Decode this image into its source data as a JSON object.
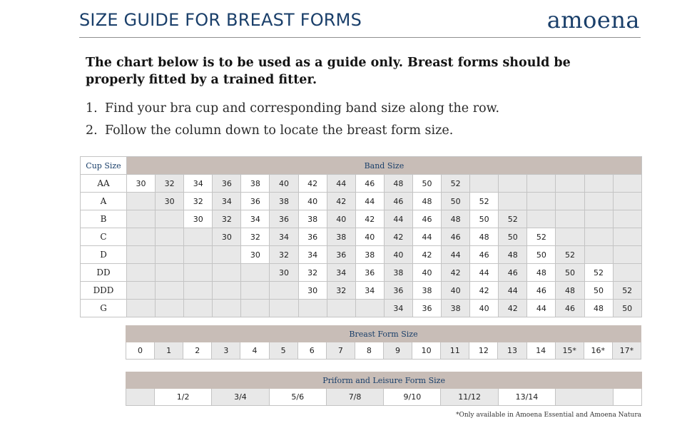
{
  "header": {
    "title": "SIZE GUIDE FOR BREAST FORMS",
    "logo_text": "amoena",
    "brand_color": "#1a3f6a"
  },
  "intro": "The chart below is to be used as a guide only. Breast forms should be properly fitted by a trained fitter.",
  "steps": [
    {
      "num": "1.",
      "text": "Find your bra cup and corresponding band size along the row."
    },
    {
      "num": "2.",
      "text": "Follow the column down to locate the breast form size."
    }
  ],
  "size_chart": {
    "cup_header": "Cup Size",
    "band_header": "Band Size",
    "rows": [
      {
        "cup": "AA",
        "cells": [
          "30",
          "32",
          "34",
          "36",
          "38",
          "40",
          "42",
          "44",
          "46",
          "48",
          "50",
          "52",
          "",
          "",
          "",
          "",
          "",
          ""
        ]
      },
      {
        "cup": "A",
        "cells": [
          "",
          "30",
          "32",
          "34",
          "36",
          "38",
          "40",
          "42",
          "44",
          "46",
          "48",
          "50",
          "52",
          "",
          "",
          "",
          "",
          ""
        ]
      },
      {
        "cup": "B",
        "cells": [
          "",
          "",
          "30",
          "32",
          "34",
          "36",
          "38",
          "40",
          "42",
          "44",
          "46",
          "48",
          "50",
          "52",
          "",
          "",
          "",
          ""
        ]
      },
      {
        "cup": "C",
        "cells": [
          "",
          "",
          "",
          "30",
          "32",
          "34",
          "36",
          "38",
          "40",
          "42",
          "44",
          "46",
          "48",
          "50",
          "52",
          "",
          "",
          ""
        ]
      },
      {
        "cup": "D",
        "cells": [
          "",
          "",
          "",
          "",
          "30",
          "32",
          "34",
          "36",
          "38",
          "40",
          "42",
          "44",
          "46",
          "48",
          "50",
          "52",
          "",
          ""
        ]
      },
      {
        "cup": "DD",
        "cells": [
          "",
          "",
          "",
          "",
          "",
          "30",
          "32",
          "34",
          "36",
          "38",
          "40",
          "42",
          "44",
          "46",
          "48",
          "50",
          "52",
          ""
        ]
      },
      {
        "cup": "DDD",
        "cells": [
          "",
          "",
          "",
          "",
          "",
          "",
          "30",
          "32",
          "34",
          "36",
          "38",
          "40",
          "42",
          "44",
          "46",
          "48",
          "50",
          "52"
        ]
      },
      {
        "cup": "G",
        "cells": [
          "",
          "",
          "",
          "",
          "",
          "",
          "",
          "",
          "",
          "34",
          "36",
          "38",
          "40",
          "42",
          "44",
          "46",
          "48",
          "50"
        ]
      }
    ]
  },
  "breast_form": {
    "header": "Breast Form Size",
    "sizes": [
      "0",
      "1",
      "2",
      "3",
      "4",
      "5",
      "6",
      "7",
      "8",
      "9",
      "10",
      "11",
      "12",
      "13",
      "14",
      "15*",
      "16*",
      "17*"
    ]
  },
  "priform": {
    "header": "Priform and Leisure Form Size",
    "sizes": [
      "1/2",
      "3/4",
      "5/6",
      "7/8",
      "9/10",
      "11/12",
      "13/14"
    ]
  },
  "footnote": "*Only available in Amoena Essential and Amoena Natura",
  "colors": {
    "header_band": "#c8bdb7",
    "alt_column": "#e8e8e8",
    "grid": "#c4c4c4"
  }
}
